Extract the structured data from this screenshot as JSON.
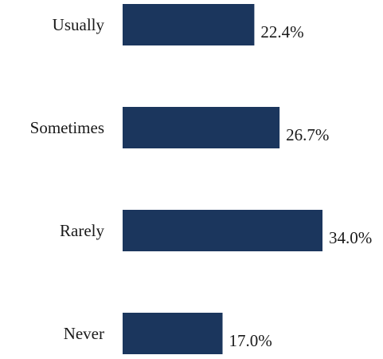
{
  "chart_data": {
    "type": "bar",
    "orientation": "horizontal",
    "categories": [
      "Usually",
      "Sometimes",
      "Rarely",
      "Never"
    ],
    "values": [
      22.4,
      26.7,
      34.0,
      17.0
    ],
    "value_labels": [
      "22.4%",
      "26.7%",
      "34.0%",
      "17.0%"
    ],
    "unit": "%",
    "xlim": [
      0,
      34.0
    ],
    "grid": false,
    "legend": "none",
    "bar_color": "#1b365d"
  }
}
